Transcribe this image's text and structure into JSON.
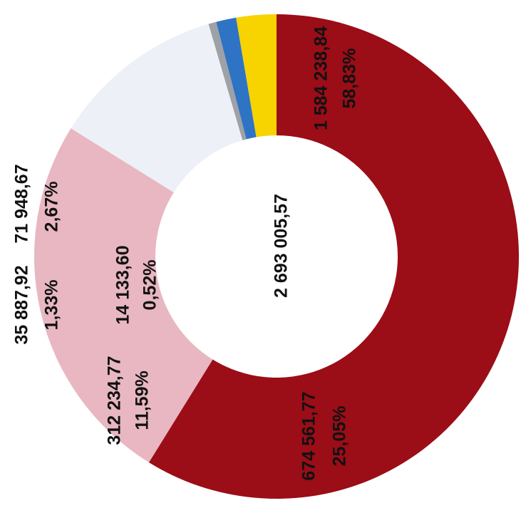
{
  "chart_data": {
    "type": "pie",
    "variant": "donut",
    "orientation": "rotated 90° clockwise (text reads bottom-to-top)",
    "total_label": "2 693 005,57",
    "slices": [
      {
        "value": 1584238.84,
        "value_label": "1 584 238,84",
        "percent_label": "58,83%",
        "color": "#9b0d17"
      },
      {
        "value": 674561.77,
        "value_label": "674 561,77",
        "percent_label": "25,05%",
        "color": "#e8b7c2"
      },
      {
        "value": 312234.77,
        "value_label": "312 234,77",
        "percent_label": "11,59%",
        "color": "#edf0f7"
      },
      {
        "value": 14133.6,
        "value_label": "14 133,60",
        "percent_label": "0,52%",
        "color": "#9ea1a6"
      },
      {
        "value": 35887.92,
        "value_label": "35 887,92",
        "percent_label": "1,33%",
        "color": "#2e73c4"
      },
      {
        "value": 71948.67,
        "value_label": "71 948,67",
        "percent_label": "2,67%",
        "color": "#f7d300"
      }
    ]
  }
}
